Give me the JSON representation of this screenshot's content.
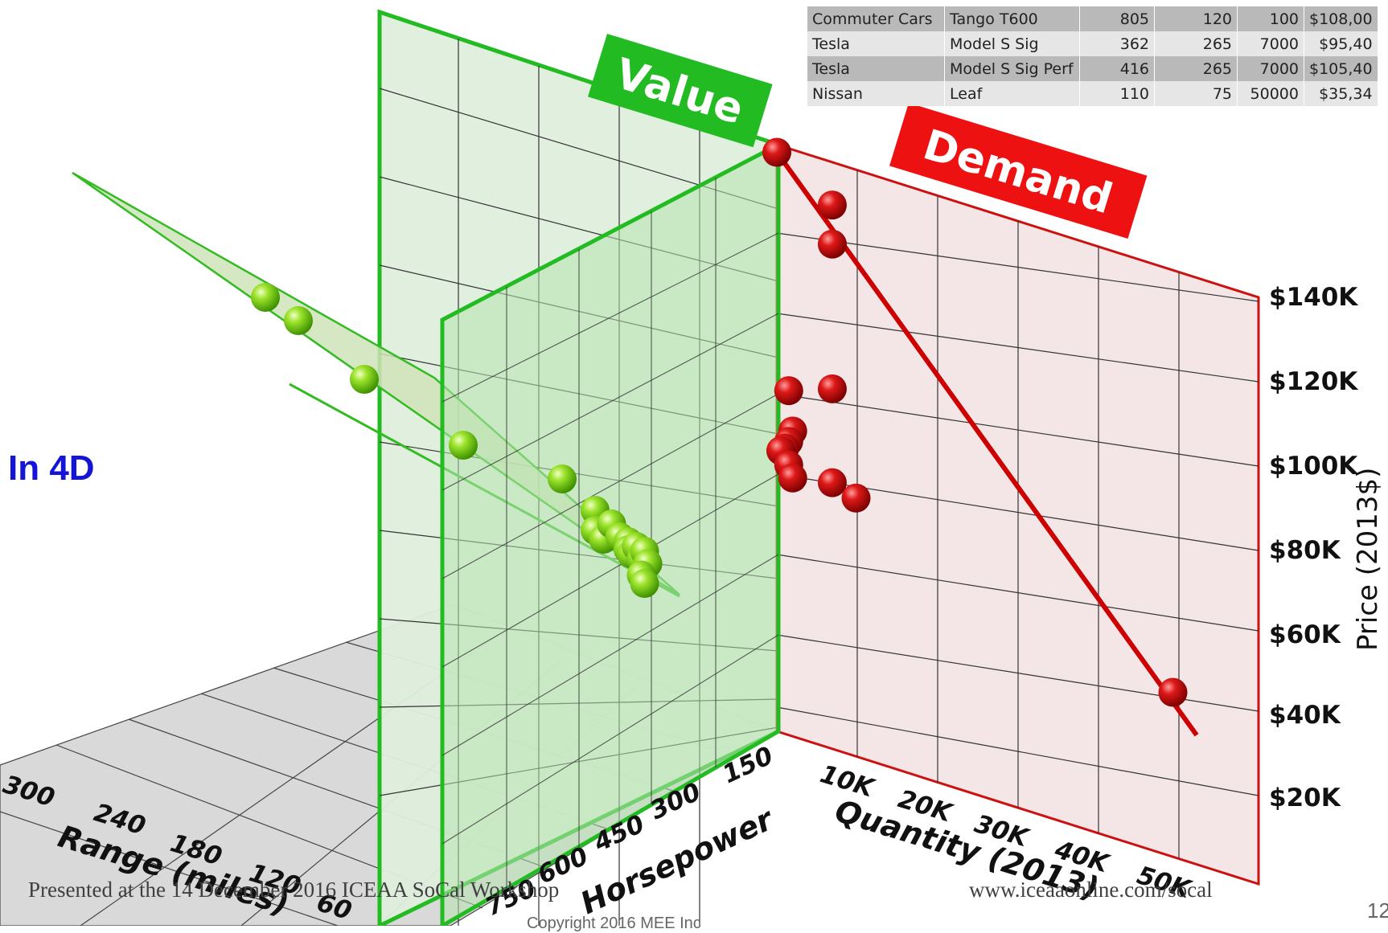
{
  "slide": {
    "caption": "In 4D",
    "footer_left": "Presented at the 14 December 2016 ICEAA SoCal Workshop",
    "footer_right": "www.iceaaonline.com/socal",
    "copyright": "Copyright 2016 MEE Inc",
    "page_number": "12"
  },
  "table": {
    "rows": [
      [
        "Commuter Cars",
        "Tango T600",
        "805",
        "120",
        "100",
        "$108,00"
      ],
      [
        "Tesla",
        "Model S Sig",
        "362",
        "265",
        "7000",
        "$95,40"
      ],
      [
        "Tesla",
        "Model S Sig Perf",
        "416",
        "265",
        "7000",
        "$105,40"
      ],
      [
        "Nissan",
        "Leaf",
        "110",
        "75",
        "50000",
        "$35,34"
      ]
    ]
  },
  "colors": {
    "value": "#22bb22",
    "demand": "#dd1111",
    "caption": "#1515d8"
  },
  "chart_data": {
    "type": "scatter",
    "panels": {
      "value_label": "Value",
      "demand_label": "Demand"
    },
    "axes": {
      "range": {
        "label": "Range (miles)",
        "ticks": [
          "300",
          "240",
          "180",
          "120",
          "60"
        ]
      },
      "horsepower": {
        "label": "Horsepower",
        "ticks": [
          "750",
          "600",
          "450",
          "300",
          "150"
        ]
      },
      "quantity": {
        "label": "Quantity (2013)",
        "ticks": [
          "10K",
          "20K",
          "30K",
          "40K",
          "50K"
        ]
      },
      "price": {
        "label": "Price (2013$)",
        "ticks": [
          "$20K",
          "$40K",
          "$60K",
          "$80K",
          "$100K",
          "$120K",
          "$140K"
        ]
      }
    },
    "demand_points": [
      {
        "quantity": 0,
        "price": 146
      },
      {
        "quantity": 7000,
        "price": 137
      },
      {
        "quantity": 7000,
        "price": 127
      },
      {
        "quantity": 7000,
        "price": 90
      },
      {
        "quantity": 1500,
        "price": 86
      },
      {
        "quantity": 2000,
        "price": 76
      },
      {
        "quantity": 1500,
        "price": 73
      },
      {
        "quantity": 1000,
        "price": 71
      },
      {
        "quantity": 500,
        "price": 70
      },
      {
        "quantity": 1500,
        "price": 67
      },
      {
        "quantity": 2000,
        "price": 64
      },
      {
        "quantity": 7000,
        "price": 66
      },
      {
        "quantity": 10000,
        "price": 64
      },
      {
        "quantity": 50000,
        "price": 40
      }
    ],
    "demand_fit": {
      "from": {
        "quantity": 0,
        "price": 146
      },
      "to": {
        "quantity": 53000,
        "price": 31
      }
    },
    "value_points": [
      {
        "range": 300,
        "hp": 150,
        "price": 130
      },
      {
        "range": 280,
        "hp": 150,
        "price": 125
      },
      {
        "range": 240,
        "hp": 150,
        "price": 112
      },
      {
        "range": 180,
        "hp": 150,
        "price": 98
      },
      {
        "range": 120,
        "hp": 150,
        "price": 92
      },
      {
        "range": 100,
        "hp": 150,
        "price": 85
      },
      {
        "range": 100,
        "hp": 150,
        "price": 80
      },
      {
        "range": 95,
        "hp": 150,
        "price": 78
      },
      {
        "range": 90,
        "hp": 150,
        "price": 82
      },
      {
        "range": 85,
        "hp": 150,
        "price": 79
      },
      {
        "range": 80,
        "hp": 150,
        "price": 78
      },
      {
        "range": 80,
        "hp": 150,
        "price": 76
      },
      {
        "range": 78,
        "hp": 150,
        "price": 75
      },
      {
        "range": 75,
        "hp": 150,
        "price": 77
      },
      {
        "range": 72,
        "hp": 150,
        "price": 74
      },
      {
        "range": 70,
        "hp": 150,
        "price": 76
      },
      {
        "range": 68,
        "hp": 150,
        "price": 73
      },
      {
        "range": 72,
        "hp": 150,
        "price": 70
      },
      {
        "range": 70,
        "hp": 150,
        "price": 68
      }
    ]
  }
}
